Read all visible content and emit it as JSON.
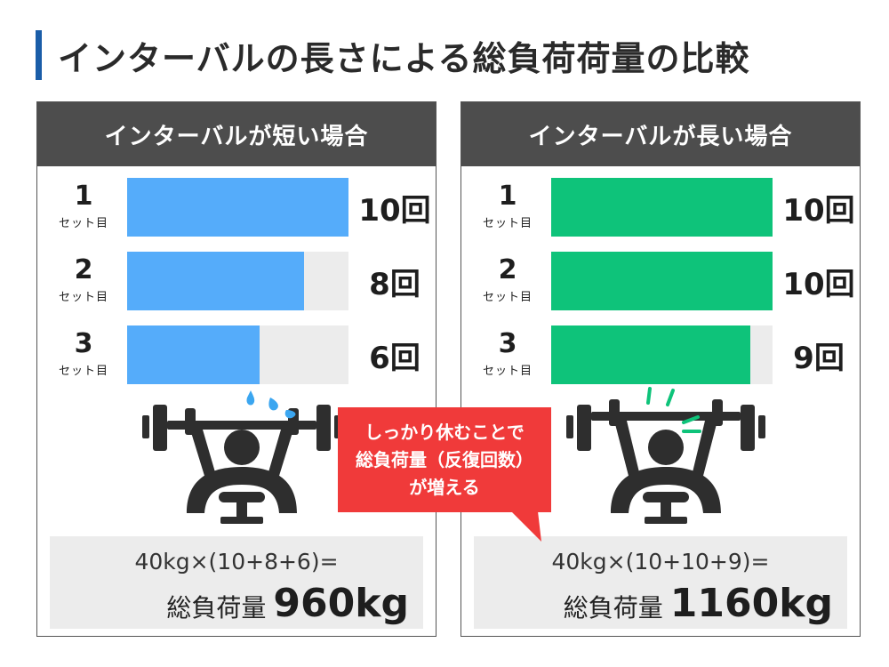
{
  "title": "インターバルの長さによる総負荷荷量の比較",
  "colors": {
    "title_accent": "#1a5da8",
    "short_bar": "#55acfa",
    "long_bar": "#0ec37a",
    "empty_track": "#ececec",
    "header_bg": "#4d4d4d",
    "callout_bg": "#f03a3a",
    "icon_dark": "#2e2e2e",
    "sweat": "#3ba6f0",
    "effort": "#0ec37a"
  },
  "icons": {
    "short_interval": "bench-press-sweat-icon",
    "long_interval": "bench-press-strong-icon"
  },
  "chart_data": [
    {
      "type": "bar",
      "orientation": "horizontal",
      "title": "インターバルが短い場合",
      "categories": [
        "1",
        "2",
        "3"
      ],
      "category_unit": "セット目",
      "values": [
        10,
        8,
        6
      ],
      "value_labels": [
        "10回",
        "8回",
        "6回"
      ],
      "xlim": [
        0,
        10
      ],
      "formula": "40kg×(10+8+6)=",
      "total_label": "総負荷量",
      "total_value": "960kg"
    },
    {
      "type": "bar",
      "orientation": "horizontal",
      "title": "インターバルが長い場合",
      "categories": [
        "1",
        "2",
        "3"
      ],
      "category_unit": "セット目",
      "values": [
        10,
        10,
        9
      ],
      "value_labels": [
        "10回",
        "10回",
        "9回"
      ],
      "xlim": [
        0,
        10
      ],
      "formula": "40kg×(10+10+9)=",
      "total_label": "総負荷量",
      "total_value": "1160kg"
    }
  ],
  "callout": {
    "lines": [
      "しっかり休むことで",
      "総負荷量（反復回数）",
      "が増える"
    ]
  }
}
